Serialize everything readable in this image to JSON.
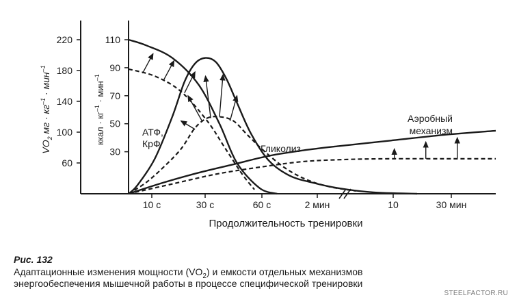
{
  "chart_data": {
    "type": "line",
    "xlabel": "Продолжительность тренировки",
    "x_ticks": [
      "10 с",
      "30 с",
      "60 с",
      "2 мин",
      "10",
      "30 мин"
    ],
    "y_left": {
      "label_main": "VO",
      "label_sub": "2",
      "label_rest": " мг · кг",
      "label_sup1": "–1",
      "label_mid": " · мин",
      "label_sup2": "–1",
      "ticks": [
        60,
        100,
        140,
        180,
        220
      ]
    },
    "y_right": {
      "label": "ккал · кг",
      "label_sup1": "–1",
      "label_mid": " · мин",
      "label_sup2": "–1",
      "ticks": [
        30,
        50,
        70,
        90,
        110
      ]
    },
    "axis_break": true,
    "series": [
      {
        "name": "АТФ, КрФ",
        "style": "solid",
        "stage": "after",
        "points": [
          [
            0,
            110
          ],
          [
            10,
            106
          ],
          [
            25,
            97
          ],
          [
            40,
            78
          ],
          [
            52,
            50
          ],
          [
            62,
            22
          ],
          [
            75,
            4
          ],
          [
            85,
            0
          ]
        ]
      },
      {
        "name": "АТФ, КрФ",
        "style": "dashed",
        "stage": "before",
        "points": [
          [
            0,
            89
          ],
          [
            15,
            84
          ],
          [
            30,
            73
          ],
          [
            45,
            52
          ],
          [
            55,
            33
          ],
          [
            65,
            14
          ],
          [
            72,
            3
          ]
        ]
      },
      {
        "name": "Гликолиз",
        "style": "solid",
        "stage": "after",
        "points": [
          [
            0,
            0
          ],
          [
            5,
            6
          ],
          [
            15,
            25
          ],
          [
            25,
            55
          ],
          [
            32,
            80
          ],
          [
            38,
            93
          ],
          [
            44,
            97
          ],
          [
            50,
            94
          ],
          [
            56,
            82
          ],
          [
            62,
            65
          ],
          [
            70,
            43
          ],
          [
            80,
            24
          ],
          [
            92,
            13
          ],
          [
            105,
            8
          ],
          [
            120,
            4
          ],
          [
            140,
            1
          ],
          [
            165,
            0
          ]
        ]
      },
      {
        "name": "Гликолиз",
        "style": "dashed",
        "stage": "before",
        "points": [
          [
            0,
            0
          ],
          [
            10,
            8
          ],
          [
            20,
            19
          ],
          [
            30,
            32
          ],
          [
            38,
            47
          ],
          [
            45,
            54
          ],
          [
            52,
            55
          ],
          [
            60,
            52
          ],
          [
            68,
            42
          ],
          [
            78,
            30
          ],
          [
            90,
            18
          ],
          [
            102,
            10
          ],
          [
            115,
            5
          ],
          [
            130,
            2
          ]
        ]
      },
      {
        "name": "Аэробный механизм",
        "style": "solid",
        "stage": "after",
        "points": [
          [
            0,
            0
          ],
          [
            20,
            8
          ],
          [
            40,
            15
          ],
          [
            60,
            21
          ],
          [
            80,
            27
          ],
          [
            100,
            31
          ],
          [
            120,
            34
          ],
          [
            150,
            38
          ],
          [
            180,
            42
          ],
          [
            210,
            45
          ]
        ]
      },
      {
        "name": "Аэробный механизм",
        "style": "dashed",
        "stage": "before",
        "points": [
          [
            0,
            0
          ],
          [
            25,
            7
          ],
          [
            50,
            14
          ],
          [
            75,
            19
          ],
          [
            100,
            23
          ],
          [
            125,
            24.5
          ],
          [
            150,
            25
          ],
          [
            180,
            25
          ],
          [
            210,
            25
          ]
        ]
      }
    ],
    "annotations": [
      {
        "text1": "АТФ,",
        "text2": "КрФ"
      },
      {
        "text1": "Гликолиз"
      },
      {
        "text1": "Аэробный",
        "text2": "механизм"
      }
    ]
  },
  "caption": {
    "title": "Рис. 132",
    "line1": "Адаптационные изменения мощности (VO",
    "line1_sub": "2",
    "line1_rest": ") и емкости отдельных механизмов",
    "line2": "энергообеспечения мышечной работы в процессе специфической тренировки"
  },
  "watermark": "STEELFACTOR.RU"
}
